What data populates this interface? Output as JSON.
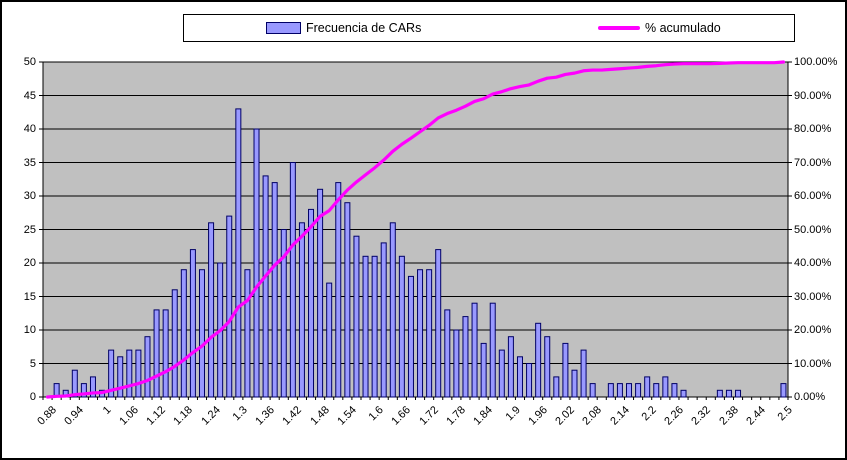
{
  "chart": {
    "legend": {
      "items": [
        {
          "label": "Frecuencia de CARs",
          "swatch": "bar-swatch",
          "color": "#9999FF"
        },
        {
          "label": "% acumulado",
          "swatch": "line-swatch",
          "color": "#FF00FF"
        }
      ],
      "position": "top"
    },
    "colors": {
      "bar_fill": "#9999FF",
      "bar_border": "#000066",
      "line": "#FF00FF",
      "plot_bg": "#C0C0C0",
      "grid": "#000000",
      "axis": "#000000",
      "background": "#FFFFFF"
    },
    "axes": {
      "y_left": {
        "min": 0,
        "max": 50,
        "step": 5,
        "ticks": [
          "0",
          "5",
          "10",
          "15",
          "20",
          "25",
          "30",
          "35",
          "40",
          "45",
          "50"
        ]
      },
      "y_right": {
        "min_label": "0.00%",
        "max_label": "100.00%",
        "step_pct": 10,
        "ticks": [
          "0.00%",
          "10.00%",
          "20.00%",
          "30.00%",
          "40.00%",
          "50.00%",
          "60.00%",
          "70.00%",
          "80.00%",
          "90.00%",
          "100.00%"
        ]
      },
      "x": {
        "tick_labels": [
          "0.88",
          "0.94",
          "1",
          "1.06",
          "1.12",
          "1.18",
          "1.24",
          "1.3",
          "1.36",
          "1.42",
          "1.48",
          "1.54",
          "1.6",
          "1.66",
          "1.72",
          "1.78",
          "1.84",
          "1.9",
          "1.96",
          "2.02",
          "2.08",
          "2.14",
          "2.2",
          "2.26",
          "2.32",
          "2.38",
          "2.44",
          "2.5"
        ],
        "label_every_n_bins": 3,
        "label_rotation_deg": -45
      }
    }
  },
  "chart_data": {
    "type": "bar+line (histogram with cumulative percent, Pareto style)",
    "title": "",
    "xlabel": "",
    "ylabel_left": "",
    "ylabel_right": "",
    "grid": true,
    "legend_position": "top",
    "y_left_range": [
      0,
      50
    ],
    "y_right_range_pct": [
      0,
      100
    ],
    "x": [
      0.88,
      0.9,
      0.92,
      0.94,
      0.96,
      0.98,
      1,
      1.02,
      1.04,
      1.06,
      1.08,
      1.1,
      1.12,
      1.14,
      1.16,
      1.18,
      1.2,
      1.22,
      1.24,
      1.26,
      1.28,
      1.3,
      1.32,
      1.34,
      1.36,
      1.38,
      1.4,
      1.42,
      1.44,
      1.46,
      1.48,
      1.5,
      1.52,
      1.54,
      1.56,
      1.58,
      1.6,
      1.62,
      1.64,
      1.66,
      1.68,
      1.7,
      1.72,
      1.74,
      1.76,
      1.78,
      1.8,
      1.82,
      1.84,
      1.86,
      1.88,
      1.9,
      1.92,
      1.94,
      1.96,
      1.98,
      2,
      2.02,
      2.04,
      2.06,
      2.08,
      2.1,
      2.12,
      2.14,
      2.16,
      2.18,
      2.2,
      2.22,
      2.24,
      2.26,
      2.28,
      2.3,
      2.32,
      2.34,
      2.36,
      2.38,
      2.4,
      2.42,
      2.44,
      2.46,
      2.48,
      2.5
    ],
    "series": [
      {
        "name": "Frecuencia de CARs",
        "type": "bar",
        "y_axis": "left",
        "values": [
          0,
          2,
          1,
          4,
          2,
          3,
          1,
          7,
          6,
          7,
          7,
          9,
          13,
          13,
          16,
          19,
          22,
          19,
          26,
          20,
          27,
          43,
          19,
          40,
          33,
          32,
          25,
          35,
          26,
          28,
          31,
          17,
          32,
          29,
          24,
          21,
          21,
          23,
          26,
          21,
          18,
          19,
          19,
          22,
          13,
          10,
          12,
          14,
          8,
          14,
          7,
          9,
          6,
          5,
          11,
          9,
          3,
          8,
          4,
          7,
          2,
          0,
          2,
          2,
          2,
          2,
          3,
          2,
          3,
          2,
          1,
          0,
          0,
          0,
          1,
          1,
          1,
          0,
          0,
          0,
          0,
          2
        ]
      },
      {
        "name": "% acumulado",
        "type": "line",
        "y_axis": "right",
        "values_pct": [
          0,
          0.2,
          0.3,
          0.7,
          0.91,
          1.21,
          1.31,
          2.01,
          2.62,
          3.32,
          4.02,
          4.93,
          6.24,
          7.55,
          9.15,
          11.07,
          13.28,
          15.19,
          17.81,
          19.82,
          22.54,
          26.86,
          28.77,
          32.8,
          36.12,
          39.34,
          41.85,
          45.37,
          47.99,
          50.8,
          53.92,
          55.63,
          58.85,
          61.77,
          64.19,
          66.3,
          68.41,
          70.72,
          73.34,
          75.45,
          77.26,
          79.18,
          81.09,
          83.3,
          84.61,
          85.61,
          86.82,
          88.23,
          89.03,
          90.44,
          91.15,
          92.05,
          92.66,
          93.16,
          94.27,
          95.17,
          95.47,
          96.28,
          96.68,
          97.38,
          97.59,
          97.59,
          97.79,
          97.99,
          98.19,
          98.39,
          98.69,
          98.89,
          99.2,
          99.4,
          99.5,
          99.5,
          99.5,
          99.5,
          99.6,
          99.7,
          99.8,
          99.8,
          99.8,
          99.8,
          99.8,
          100
        ]
      }
    ]
  }
}
